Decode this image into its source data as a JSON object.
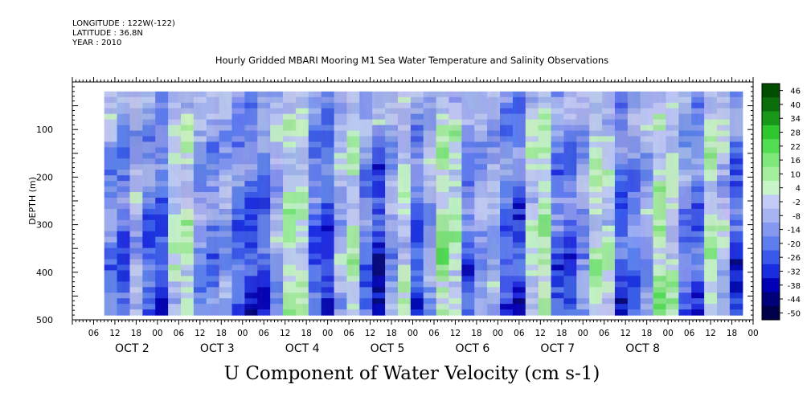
{
  "header": {
    "longitude": "LONGITUDE : 122W(-122)",
    "latitude": "LATITUDE : 36.8N",
    "year": "YEAR : 2010"
  },
  "chart_data": {
    "type": "heatmap",
    "title": "Hourly Gridded MBARI Mooring M1 Sea Water Temperature and Salinity Observations",
    "footer_title": "U Component of Water Velocity (cm s-1)",
    "ylabel": "DEPTH (m)",
    "ylim": [
      500,
      0
    ],
    "y_ticks": [
      100,
      200,
      300,
      400,
      500
    ],
    "y_tick_labels": [
      "100",
      "200",
      "300",
      "400",
      "500"
    ],
    "data_depth_range": [
      20,
      490
    ],
    "x_range_hours": [
      0,
      192
    ],
    "data_time_range_hours": [
      9,
      189
    ],
    "x_hour_ticks": [
      "06",
      "12",
      "18",
      "00",
      "06",
      "12",
      "18",
      "00",
      "06",
      "12",
      "18",
      "00",
      "06",
      "12",
      "18",
      "00",
      "06",
      "12",
      "18",
      "00",
      "06",
      "12",
      "18",
      "00",
      "06",
      "12",
      "18",
      "00",
      "06",
      "12",
      "18",
      "00"
    ],
    "x_day_labels": [
      "OCT  2",
      "OCT  3",
      "OCT  4",
      "OCT  5",
      "OCT  6",
      "OCT  7",
      "OCT  8"
    ],
    "colorbar": {
      "levels": [
        -50,
        -44,
        -38,
        -32,
        -26,
        -20,
        -14,
        -8,
        -2,
        4,
        10,
        16,
        22,
        28,
        34,
        40,
        46
      ],
      "labels": [
        "46",
        "40",
        "34",
        "28",
        "22",
        "16",
        "10",
        "4",
        "-2",
        "-8",
        "-14",
        "-20",
        "-26",
        "-32",
        "-38",
        "-44",
        "-50"
      ],
      "colors": [
        "#00004a",
        "#00007a",
        "#0000b4",
        "#1a2ce0",
        "#3a58ec",
        "#5e7ef0",
        "#8498f0",
        "#a6b4f2",
        "#c2ccf6",
        "#c8f5c8",
        "#a4ee9e",
        "#7ee87a",
        "#52de52",
        "#2ec82e",
        "#189818",
        "#0a6e0a",
        "#004d00"
      ]
    },
    "column_profile": [
      -12,
      -18,
      -6,
      -16,
      -20,
      2,
      6,
      -10,
      -14,
      -8,
      -16,
      -22,
      -20,
      -6,
      8,
      4,
      -18,
      -24,
      -4,
      6,
      -14,
      -26,
      -8,
      2,
      -20,
      -6,
      10,
      6,
      -16,
      -8,
      -6,
      -18,
      -22,
      2,
      8,
      -16,
      -20,
      -10,
      6,
      2,
      -20,
      -14,
      -8,
      10,
      4,
      -14,
      -18,
      6,
      -2,
      -22
    ]
  }
}
